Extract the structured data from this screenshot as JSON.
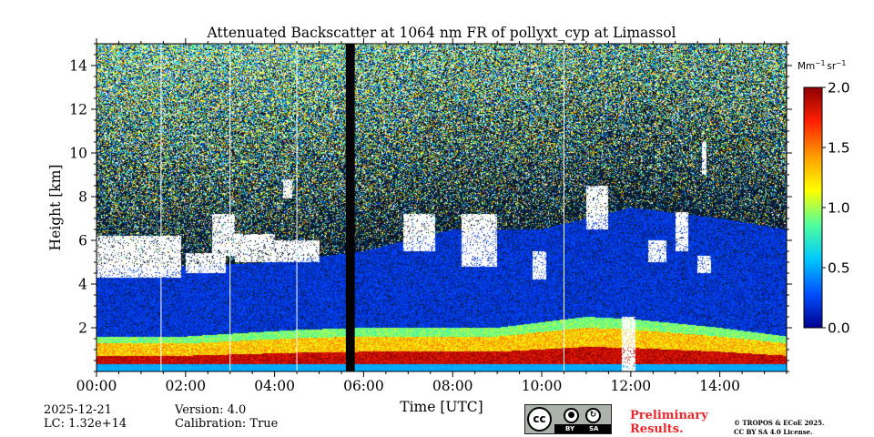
{
  "chart_data": {
    "type": "heatmap",
    "title": "Attenuated Backscatter at 1064 nm FR of pollyxt_cyp at Limassol",
    "xlabel": "Time [UTC]",
    "ylabel": "Height [km]",
    "xlim_hours": [
      0,
      15.5
    ],
    "ylim_km": [
      0,
      15
    ],
    "x_ticks": [
      {
        "hour": 0,
        "label": "00:00"
      },
      {
        "hour": 2,
        "label": "02:00"
      },
      {
        "hour": 4,
        "label": "04:00"
      },
      {
        "hour": 6,
        "label": "06:00"
      },
      {
        "hour": 8,
        "label": "08:00"
      },
      {
        "hour": 10,
        "label": "10:00"
      },
      {
        "hour": 12,
        "label": "12:00"
      },
      {
        "hour": 14,
        "label": "14:00"
      }
    ],
    "y_ticks": [
      {
        "km": 2,
        "label": "2"
      },
      {
        "km": 4,
        "label": "4"
      },
      {
        "km": 6,
        "label": "6"
      },
      {
        "km": 8,
        "label": "8"
      },
      {
        "km": 10,
        "label": "10"
      },
      {
        "km": 12,
        "label": "12"
      },
      {
        "km": 14,
        "label": "14"
      }
    ],
    "colorbar": {
      "unit_main": "Mm",
      "unit_exp1": "−1",
      "unit_mid": "sr",
      "unit_exp2": "−1",
      "range": [
        0,
        2
      ],
      "ticks": [
        {
          "value": 0.0,
          "label": "0.0"
        },
        {
          "value": 0.5,
          "label": "0.5"
        },
        {
          "value": 1.0,
          "label": "1.0"
        },
        {
          "value": 1.5,
          "label": "1.5"
        },
        {
          "value": 2.0,
          "label": "2.0"
        }
      ],
      "colors": [
        "#00008f",
        "#0050ff",
        "#00c8ff",
        "#50ff9c",
        "#ffff00",
        "#ff9c00",
        "#ff2000",
        "#8f0000"
      ]
    },
    "data_gap_hours": [
      5.6,
      5.8
    ],
    "scene": {
      "boundary_layer_top_km": [
        {
          "hour": 0,
          "km": 1.6
        },
        {
          "hour": 2,
          "km": 1.6
        },
        {
          "hour": 4.5,
          "km": 1.9
        },
        {
          "hour": 6,
          "km": 2.0
        },
        {
          "hour": 9,
          "km": 2.0
        },
        {
          "hour": 11,
          "km": 2.5
        },
        {
          "hour": 12,
          "km": 2.4
        },
        {
          "hour": 14,
          "km": 2.0
        },
        {
          "hour": 15.5,
          "km": 1.6
        }
      ],
      "aerosol_layer_top_km": [
        {
          "hour": 0,
          "km": 4.7
        },
        {
          "hour": 2,
          "km": 4.8
        },
        {
          "hour": 4,
          "km": 5.0
        },
        {
          "hour": 6,
          "km": 5.5
        },
        {
          "hour": 8,
          "km": 6.5
        },
        {
          "hour": 10,
          "km": 6.5
        },
        {
          "hour": 12,
          "km": 7.5
        },
        {
          "hour": 14,
          "km": 7.0
        },
        {
          "hour": 15.5,
          "km": 6.5
        }
      ],
      "cloud_patches": [
        {
          "start": 0.0,
          "end": 1.9,
          "bottom_km": 4.3,
          "top_km": 6.2
        },
        {
          "start": 2.0,
          "end": 2.9,
          "bottom_km": 4.5,
          "top_km": 5.4
        },
        {
          "start": 2.6,
          "end": 3.1,
          "bottom_km": 5.3,
          "top_km": 7.2
        },
        {
          "start": 3.1,
          "end": 4.0,
          "bottom_km": 5.0,
          "top_km": 6.3
        },
        {
          "start": 4.0,
          "end": 5.0,
          "bottom_km": 5.0,
          "top_km": 6.0
        },
        {
          "start": 4.2,
          "end": 4.4,
          "bottom_km": 7.9,
          "top_km": 8.8
        },
        {
          "start": 6.9,
          "end": 7.6,
          "bottom_km": 5.5,
          "top_km": 7.2
        },
        {
          "start": 8.2,
          "end": 9.0,
          "bottom_km": 4.8,
          "top_km": 7.2
        },
        {
          "start": 9.8,
          "end": 10.1,
          "bottom_km": 4.2,
          "top_km": 5.5
        },
        {
          "start": 11.0,
          "end": 11.5,
          "bottom_km": 6.5,
          "top_km": 8.5
        },
        {
          "start": 12.4,
          "end": 12.8,
          "bottom_km": 5.0,
          "top_km": 6.0
        },
        {
          "start": 13.0,
          "end": 13.3,
          "bottom_km": 5.5,
          "top_km": 7.3
        },
        {
          "start": 13.5,
          "end": 13.8,
          "bottom_km": 4.5,
          "top_km": 5.3
        },
        {
          "start": 13.6,
          "end": 13.7,
          "bottom_km": 9.0,
          "top_km": 10.5
        },
        {
          "start": 11.8,
          "end": 12.1,
          "bottom_km": 0.0,
          "top_km": 2.5
        }
      ],
      "profile_gaps_hours": [
        1.45,
        3.0,
        4.5,
        10.5
      ]
    }
  },
  "footer": {
    "date": "2025-12-21",
    "lc": "LC: 1.32e+14",
    "version": "Version: 4.0",
    "calibration": "Calibration: True",
    "preliminary_1": "Preliminary",
    "preliminary_2": "Results.",
    "license_1": "© TROPOS & ECoE 2025.",
    "license_2": "CC BY SA 4.0 License.",
    "badge": {
      "cc": "cc",
      "by": "BY",
      "sa": "SA"
    }
  }
}
